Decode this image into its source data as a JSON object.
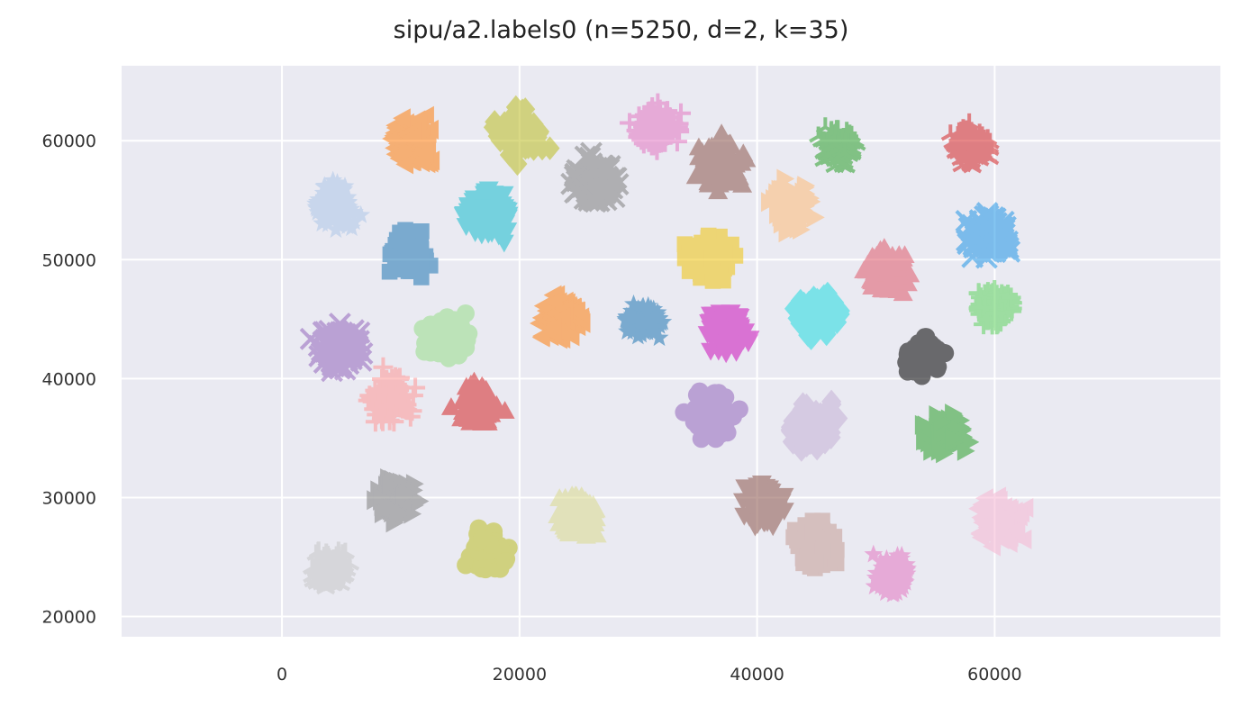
{
  "chart_data": {
    "type": "scatter",
    "title": "sipu/a2.labels0 (n=5250, d=2, k=35)",
    "xlabel": "",
    "ylabel": "",
    "xlim": [
      -13500,
      79000
    ],
    "ylim": [
      18300,
      66300
    ],
    "x_ticks": [
      0,
      20000,
      40000,
      60000
    ],
    "y_ticks": [
      20000,
      30000,
      40000,
      50000,
      60000
    ],
    "x_tick_labels": [
      "0",
      "20000",
      "40000",
      "60000"
    ],
    "y_tick_labels": [
      "20000",
      "30000",
      "40000",
      "50000",
      "60000"
    ],
    "grid": true,
    "background": "#eaeaf2",
    "clusters": [
      {
        "center": [
          4500,
          54500
        ],
        "spread": 2400,
        "color": "#aec7e8",
        "marker": "star"
      },
      {
        "center": [
          10500,
          50500
        ],
        "spread": 2400,
        "color": "#1f77b4",
        "marker": "square"
      },
      {
        "center": [
          11000,
          60000
        ],
        "spread": 2500,
        "color": "#ff7f0e",
        "marker": "triangle-left"
      },
      {
        "center": [
          17500,
          54000
        ],
        "spread": 2500,
        "color": "#17becf",
        "marker": "triangle-down"
      },
      {
        "center": [
          20000,
          60500
        ],
        "spread": 2500,
        "color": "#bcbd22",
        "marker": "diamond"
      },
      {
        "center": [
          26500,
          56500
        ],
        "spread": 2500,
        "color": "#7f7f7f",
        "marker": "x"
      },
      {
        "center": [
          31500,
          61000
        ],
        "spread": 2600,
        "color": "#e377c2",
        "marker": "plus"
      },
      {
        "center": [
          37000,
          58000
        ],
        "spread": 2500,
        "color": "#8c564b",
        "marker": "triangle-up"
      },
      {
        "center": [
          43000,
          54500
        ],
        "spread": 2500,
        "color": "#ffbb78",
        "marker": "triangle-right"
      },
      {
        "center": [
          47000,
          59500
        ],
        "spread": 2000,
        "color": "#2ca02c",
        "marker": "tri"
      },
      {
        "center": [
          58000,
          59500
        ],
        "spread": 2200,
        "color": "#d62728",
        "marker": "tri"
      },
      {
        "center": [
          59500,
          52000
        ],
        "spread": 2500,
        "color": "#2196e6",
        "marker": "x"
      },
      {
        "center": [
          36000,
          50000
        ],
        "spread": 2500,
        "color": "#f1c40f",
        "marker": "square"
      },
      {
        "center": [
          51000,
          49000
        ],
        "spread": 2300,
        "color": "#e05a6a",
        "marker": "triangle-up"
      },
      {
        "center": [
          60000,
          46000
        ],
        "spread": 2200,
        "color": "#5fd35f",
        "marker": "plus"
      },
      {
        "center": [
          45000,
          45500
        ],
        "spread": 2400,
        "color": "#22dde0",
        "marker": "diamond"
      },
      {
        "center": [
          37500,
          44000
        ],
        "spread": 2300,
        "color": "#cc11bb",
        "marker": "triangle-down"
      },
      {
        "center": [
          30500,
          45000
        ],
        "spread": 2000,
        "color": "#1f77b4",
        "marker": "star"
      },
      {
        "center": [
          23500,
          45000
        ],
        "spread": 2300,
        "color": "#ff7f0e",
        "marker": "triangle-left"
      },
      {
        "center": [
          14000,
          43500
        ],
        "spread": 2400,
        "color": "#98df8a",
        "marker": "circle"
      },
      {
        "center": [
          5000,
          42500
        ],
        "spread": 2500,
        "color": "#9467bd",
        "marker": "x"
      },
      {
        "center": [
          9000,
          38500
        ],
        "spread": 2400,
        "color": "#ff9896",
        "marker": "plus"
      },
      {
        "center": [
          16500,
          38000
        ],
        "spread": 2300,
        "color": "#d62728",
        "marker": "triangle-up"
      },
      {
        "center": [
          54000,
          42000
        ],
        "spread": 2100,
        "color": "#000000",
        "marker": "circle"
      },
      {
        "center": [
          36000,
          37000
        ],
        "spread": 2400,
        "color": "#9467bd",
        "marker": "circle"
      },
      {
        "center": [
          44500,
          36000
        ],
        "spread": 2500,
        "color": "#c5b0d5",
        "marker": "diamond"
      },
      {
        "center": [
          56000,
          35500
        ],
        "spread": 2300,
        "color": "#2ca02c",
        "marker": "triangle-right"
      },
      {
        "center": [
          9500,
          30000
        ],
        "spread": 2300,
        "color": "#7f7f7f",
        "marker": "triangle-right"
      },
      {
        "center": [
          25000,
          28500
        ],
        "spread": 2300,
        "color": "#dbdb8d",
        "marker": "triangle-up"
      },
      {
        "center": [
          40500,
          29500
        ],
        "spread": 2300,
        "color": "#8c564b",
        "marker": "triangle-down"
      },
      {
        "center": [
          60500,
          28000
        ],
        "spread": 2400,
        "color": "#f7b6d2",
        "marker": "triangle-left"
      },
      {
        "center": [
          4000,
          24000
        ],
        "spread": 2200,
        "color": "#c7c7c7",
        "marker": "tri"
      },
      {
        "center": [
          17500,
          25500
        ],
        "spread": 2300,
        "color": "#bcbd22",
        "marker": "circle"
      },
      {
        "center": [
          45000,
          26000
        ],
        "spread": 2500,
        "color": "#c49c94",
        "marker": "square"
      },
      {
        "center": [
          51500,
          23500
        ],
        "spread": 2100,
        "color": "#e377c2",
        "marker": "star"
      }
    ]
  }
}
